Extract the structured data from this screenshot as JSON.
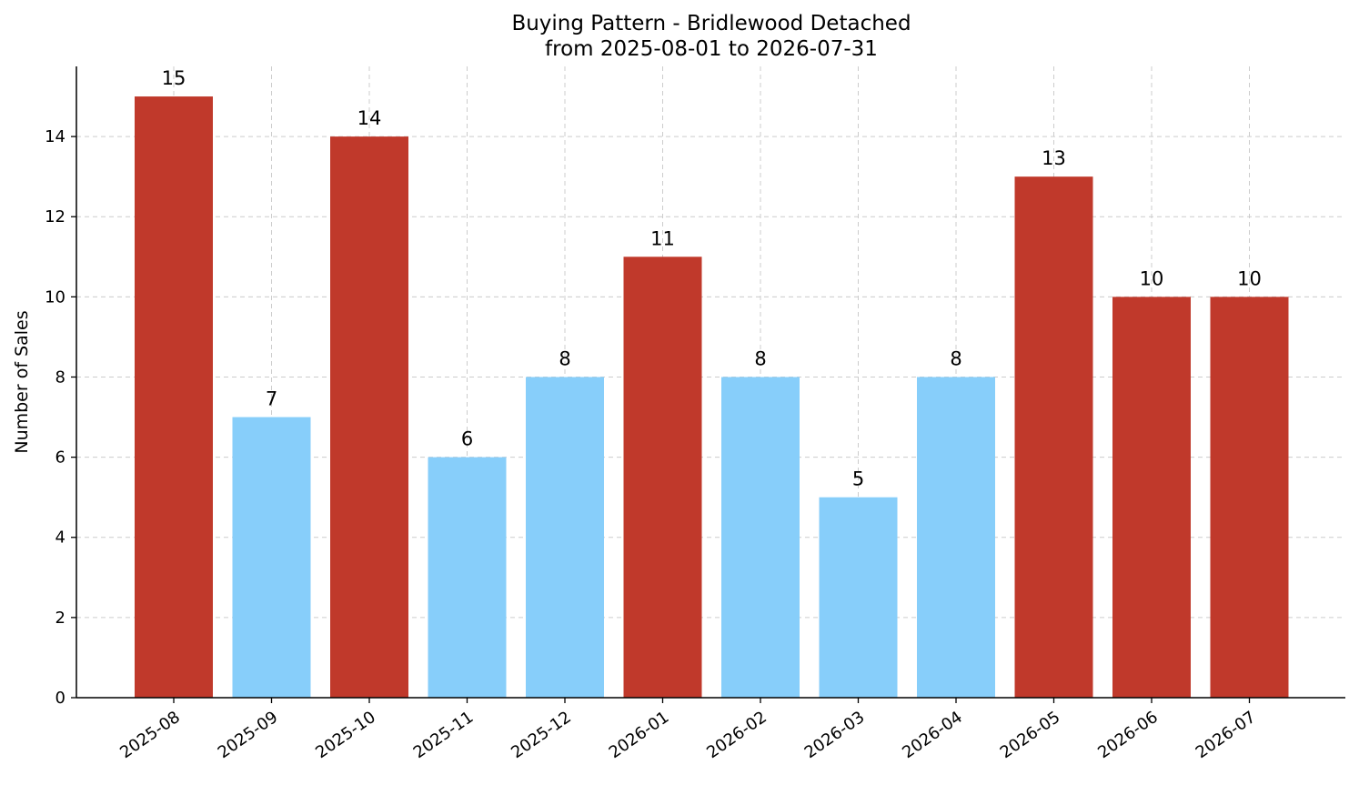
{
  "chart_data": {
    "type": "bar",
    "title": "Buying Pattern - Bridlewood Detached",
    "subtitle": "from 2025-08-01 to 2026-07-31",
    "xlabel": "",
    "ylabel": "Number of Sales",
    "categories": [
      "2025-08",
      "2025-09",
      "2025-10",
      "2025-11",
      "2025-12",
      "2026-01",
      "2026-02",
      "2026-03",
      "2026-04",
      "2026-05",
      "2026-06",
      "2026-07"
    ],
    "values": [
      15,
      7,
      14,
      6,
      8,
      11,
      8,
      5,
      8,
      13,
      10,
      10
    ],
    "bar_colors": [
      "#c0392b",
      "#87cefa",
      "#c0392b",
      "#87cefa",
      "#87cefa",
      "#c0392b",
      "#87cefa",
      "#87cefa",
      "#87cefa",
      "#c0392b",
      "#c0392b",
      "#c0392b"
    ],
    "ylim": [
      0,
      15.75
    ],
    "yticks": [
      0,
      2,
      4,
      6,
      8,
      10,
      12,
      14
    ],
    "grid": true,
    "legend": "none"
  }
}
